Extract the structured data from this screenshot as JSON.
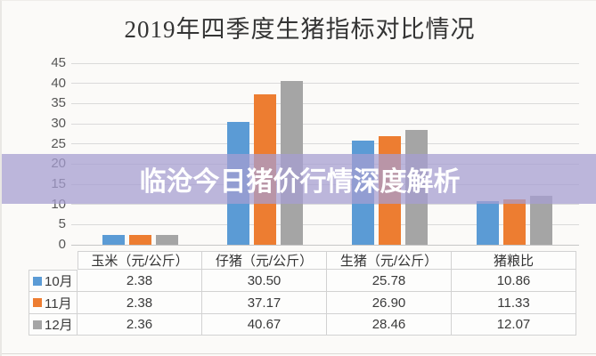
{
  "banner": {
    "text": "临沧今日猪价行情深度解析",
    "bg_color": "#a69ed1",
    "text_color": "#ffffff"
  },
  "chart_data": {
    "type": "bar",
    "title": "2019年四季度生猪指标对比情况",
    "categories": [
      "玉米（元/公斤）",
      "仔猪（元/公斤）",
      "生猪（元/公斤）",
      "猪粮比"
    ],
    "series": [
      {
        "name": "10月",
        "color": "#5b9bd5",
        "values": [
          2.38,
          30.5,
          25.78,
          10.86
        ],
        "display": [
          "2.38",
          "30.50",
          "25.78",
          "10.86"
        ]
      },
      {
        "name": "11月",
        "color": "#ed7d31",
        "values": [
          2.38,
          37.17,
          26.9,
          11.33
        ],
        "display": [
          "2.38",
          "37.17",
          "26.90",
          "11.33"
        ]
      },
      {
        "name": "12月",
        "color": "#a5a5a5",
        "values": [
          2.36,
          40.67,
          28.46,
          12.07
        ],
        "display": [
          "2.36",
          "40.67",
          "28.46",
          "12.07"
        ]
      }
    ],
    "ylim": [
      0,
      45
    ],
    "ytick_step": 5,
    "ytick_labels": [
      "0",
      "5",
      "10",
      "15",
      "20",
      "25",
      "30",
      "35",
      "40",
      "45"
    ],
    "grid": true,
    "legend_position": "table-left-column",
    "gridline_color": "#dadada"
  },
  "table": {
    "columns": [
      "玉米（元/公斤）",
      "仔猪（元/公斤）",
      "生猪（元/公斤）",
      "猪粮比"
    ],
    "row_labels": [
      "10月",
      "11月",
      "12月"
    ]
  }
}
